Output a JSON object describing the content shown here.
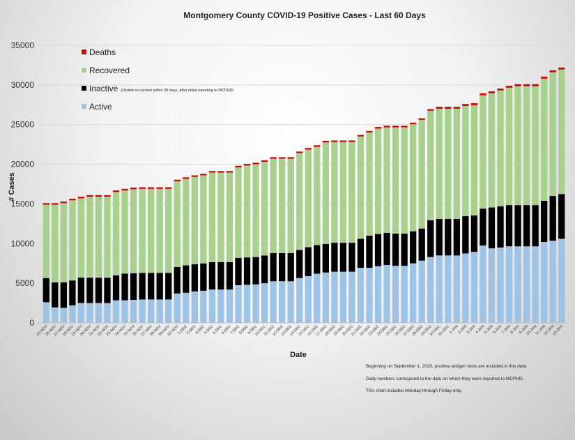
{
  "chart_data": {
    "type": "bar",
    "stacked": true,
    "title": "Montgomery County COVID-19 Positive Cases  - Last 60 Days",
    "xlabel": "Date",
    "ylabel": "# Cases",
    "ylim": [
      0,
      35000
    ],
    "yticks": [
      0,
      5000,
      10000,
      15000,
      20000,
      25000,
      30000,
      35000
    ],
    "grid": true,
    "legend_position": "top-left",
    "categories": [
      "15-NOV",
      "16-NOV",
      "17-NOV",
      "18-NOV",
      "19-NOV",
      "20-NOV",
      "21-NOV",
      "22-NOV",
      "23-NOV",
      "24-NOV",
      "25-NOV",
      "26-NOV",
      "27-NOV",
      "28-NOV",
      "29-NOV",
      "30-NOV",
      "1-DEC",
      "2-DEC",
      "3-DEC",
      "4-DEC",
      "5-DEC",
      "6-DEC",
      "7-DEC",
      "8-DEC",
      "9-DEC",
      "10-DEC",
      "11-DEC",
      "12-DEC",
      "13-DEC",
      "14-DEC",
      "15-DEC",
      "16-DEC",
      "17-DEC",
      "18-DEC",
      "19-DEC",
      "20-DEC",
      "21-DEC",
      "22-DEC",
      "23-DEC",
      "24-DEC",
      "25-DEC",
      "26-DEC",
      "27-DEC",
      "28-DEC",
      "29-DEC",
      "30-DEC",
      "31-DEC",
      "1-JAN",
      "2-JAN",
      "3-JAN",
      "4-JAN",
      "5-JAN",
      "6-JAN",
      "7-JAN",
      "8-JAN",
      "9-JAN",
      "10-JAN",
      "11-JAN",
      "12-JAN",
      "13-JAN"
    ],
    "series": [
      {
        "name": "Active",
        "color": "#9dc3e6",
        "values": [
          2600,
          1950,
          1900,
          2200,
          2500,
          2500,
          2500,
          2500,
          2850,
          2850,
          2900,
          2950,
          2950,
          2950,
          2950,
          3700,
          3800,
          3950,
          4050,
          4200,
          4200,
          4200,
          4750,
          4800,
          4850,
          5000,
          5250,
          5250,
          5250,
          5650,
          5900,
          6200,
          6350,
          6450,
          6450,
          6450,
          6950,
          6950,
          7150,
          7300,
          7200,
          7200,
          7500,
          7850,
          8300,
          8500,
          8500,
          8500,
          8750,
          8950,
          9750,
          9400,
          9500,
          9650,
          9650,
          9650,
          9650,
          10200,
          10350,
          10600
        ]
      },
      {
        "name": "Inactive",
        "color": "#000000",
        "values": [
          3050,
          3150,
          3200,
          3150,
          3200,
          3200,
          3200,
          3200,
          3150,
          3350,
          3350,
          3350,
          3350,
          3350,
          3350,
          3350,
          3450,
          3450,
          3450,
          3450,
          3450,
          3450,
          3450,
          3450,
          3450,
          3500,
          3550,
          3550,
          3550,
          3550,
          3650,
          3600,
          3600,
          3650,
          3650,
          3650,
          3650,
          4050,
          4050,
          4050,
          4050,
          4050,
          4050,
          4050,
          4650,
          4600,
          4600,
          4600,
          4700,
          4600,
          4650,
          5150,
          5200,
          5200,
          5200,
          5200,
          5200,
          5200,
          5650,
          5650
        ]
      },
      {
        "name": "Recovered",
        "color": "#a9d18e",
        "values": [
          9250,
          9800,
          10000,
          10100,
          10000,
          10200,
          10200,
          10200,
          10500,
          10500,
          10600,
          10600,
          10600,
          10600,
          10600,
          10800,
          10900,
          11000,
          11100,
          11300,
          11300,
          11300,
          11400,
          11600,
          11700,
          11800,
          11900,
          11900,
          11900,
          12200,
          12300,
          12400,
          12800,
          12700,
          12700,
          12700,
          12900,
          13000,
          13300,
          13300,
          13400,
          13400,
          13500,
          13700,
          13800,
          13900,
          13900,
          13900,
          13900,
          13900,
          14300,
          14400,
          14600,
          14800,
          15000,
          15000,
          15000,
          15400,
          15600,
          15700
        ]
      },
      {
        "name": "Deaths",
        "color": "#e00000",
        "values": [
          200,
          200,
          200,
          200,
          200,
          200,
          200,
          200,
          200,
          200,
          200,
          200,
          200,
          200,
          200,
          200,
          200,
          200,
          200,
          200,
          200,
          200,
          200,
          200,
          200,
          200,
          200,
          200,
          200,
          200,
          200,
          200,
          200,
          200,
          200,
          200,
          200,
          200,
          200,
          200,
          200,
          200,
          200,
          200,
          200,
          250,
          250,
          250,
          250,
          250,
          250,
          250,
          250,
          250,
          250,
          250,
          250,
          250,
          250,
          250
        ]
      }
    ]
  },
  "legend": {
    "deaths": "Deaths",
    "recovered": "Recovered",
    "inactive": "Inactive",
    "inactive_note": "(Unable to contact within 30 days, after initial reporting to MCPHD)",
    "active": "Active"
  },
  "notes": [
    "Beginning on September 1, 2020, positive antigen tests are included in this data.",
    "Daily numbers correspond to the date on which they were reported to MCPHD.",
    "This chart includes Monday through Firday only."
  ]
}
